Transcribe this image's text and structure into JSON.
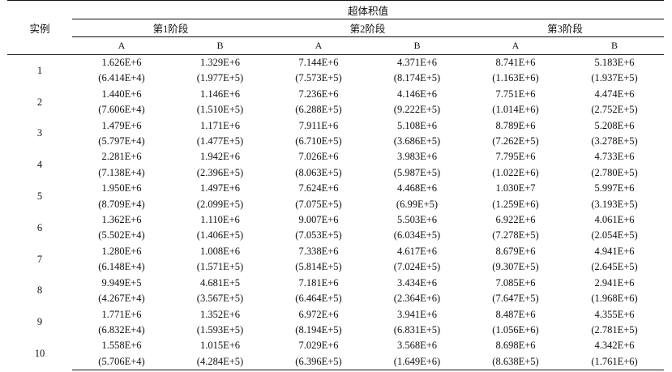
{
  "header": {
    "instance_label": "实例",
    "group_label": "超体积值",
    "stages": [
      "第1阶段",
      "第2阶段",
      "第3阶段"
    ],
    "sub_columns": [
      "A",
      "B"
    ]
  },
  "rows": [
    {
      "id": "1",
      "mean": [
        [
          "1.626E+6",
          true
        ],
        [
          "1.329E+6",
          false
        ],
        [
          "7.144E+6",
          true
        ],
        [
          "4.371E+6",
          false
        ],
        [
          "8.741E+6",
          true
        ],
        [
          "5.183E+6",
          false
        ]
      ],
      "std": [
        [
          "(6.414E+4)",
          true
        ],
        [
          "(1.977E+5)",
          false
        ],
        [
          "(7.573E+5)",
          true
        ],
        [
          "(8.174E+5)",
          false
        ],
        [
          "(1.163E+6)",
          false
        ],
        [
          "(1.937E+5)",
          true
        ]
      ]
    },
    {
      "id": "2",
      "mean": [
        [
          "1.440E+6",
          true
        ],
        [
          "1.146E+6",
          false
        ],
        [
          "7.236E+6",
          true
        ],
        [
          "4.146E+6",
          false
        ],
        [
          "7.751E+6",
          true
        ],
        [
          "4.474E+6",
          false
        ]
      ],
      "std": [
        [
          "(7.606E+4)",
          true
        ],
        [
          "(1.510E+5)",
          false
        ],
        [
          "(6.288E+5)",
          true
        ],
        [
          "(9.222E+5)",
          false
        ],
        [
          "(1.014E+6)",
          false
        ],
        [
          "(2.752E+5)",
          true
        ]
      ]
    },
    {
      "id": "3",
      "mean": [
        [
          "1.479E+6",
          true
        ],
        [
          "1.171E+6",
          false
        ],
        [
          "7.911E+6",
          true
        ],
        [
          "5.108E+6",
          false
        ],
        [
          "8.789E+6",
          true
        ],
        [
          "5.208E+6",
          false
        ]
      ],
      "std": [
        [
          "(5.797E+4)",
          true
        ],
        [
          "(1.477E+5)",
          false
        ],
        [
          "(6.710E+5)",
          false
        ],
        [
          "(3.686E+5)",
          true
        ],
        [
          "(7.262E+5)",
          false
        ],
        [
          "(3.278E+5)",
          true
        ]
      ]
    },
    {
      "id": "4",
      "mean": [
        [
          "2.281E+6",
          true
        ],
        [
          "1.942E+6",
          false
        ],
        [
          "7.026E+6",
          true
        ],
        [
          "3.983E+6",
          false
        ],
        [
          "7.795E+6",
          true
        ],
        [
          "4.733E+6",
          false
        ]
      ],
      "std": [
        [
          "(7.138E+4)",
          true
        ],
        [
          "(2.396E+5)",
          false
        ],
        [
          "(8.063E+5)",
          false
        ],
        [
          "(5.987E+5)",
          true
        ],
        [
          "(1.022E+6)",
          false
        ],
        [
          "(2.780E+5)",
          true
        ]
      ]
    },
    {
      "id": "5",
      "mean": [
        [
          "1.950E+6",
          true
        ],
        [
          "1.497E+6",
          false
        ],
        [
          "7.624E+6",
          true
        ],
        [
          "4.468E+6",
          false
        ],
        [
          "1.030E+7",
          true
        ],
        [
          "5.997E+6",
          false
        ]
      ],
      "std": [
        [
          "(8.709E+4)",
          true
        ],
        [
          "(2.099E+5)",
          false
        ],
        [
          "(7.075E+5)",
          false
        ],
        [
          "(6.99E+5)",
          true
        ],
        [
          "(1.259E+6)",
          false
        ],
        [
          "(3.193E+5)",
          true
        ]
      ]
    },
    {
      "id": "6",
      "mean": [
        [
          "1.362E+6",
          true
        ],
        [
          "1.110E+6",
          false
        ],
        [
          "9.007E+6",
          true
        ],
        [
          "5.503E+6",
          false
        ],
        [
          "6.922E+6",
          true
        ],
        [
          "4.061E+6",
          false
        ]
      ],
      "std": [
        [
          "(5.502E+4)",
          true
        ],
        [
          "(1.406E+5)",
          false
        ],
        [
          "(7.053E+5)",
          false
        ],
        [
          "(6.034E+5)",
          true
        ],
        [
          "(7.278E+5)",
          false
        ],
        [
          "(2.054E+5)",
          true
        ]
      ]
    },
    {
      "id": "7",
      "mean": [
        [
          "1.280E+6",
          true
        ],
        [
          "1.008E+6",
          false
        ],
        [
          "7.338E+6",
          true
        ],
        [
          "4.617E+6",
          false
        ],
        [
          "8.679E+6",
          true
        ],
        [
          "4.941E+6",
          false
        ]
      ],
      "std": [
        [
          "(6.148E+4)",
          true
        ],
        [
          "(1.571E+5)",
          false
        ],
        [
          "(5.814E+5)",
          true
        ],
        [
          "(7.024E+5)",
          false
        ],
        [
          "(9.307E+5)",
          false
        ],
        [
          "(2.645E+5)",
          true
        ]
      ]
    },
    {
      "id": "8",
      "mean": [
        [
          "9.949E+5",
          true
        ],
        [
          "4.681E+5",
          false
        ],
        [
          "7.181E+6",
          true
        ],
        [
          "3.434E+6",
          false
        ],
        [
          "7.085E+6",
          true
        ],
        [
          "2.941E+6",
          false
        ]
      ],
      "std": [
        [
          "(4.267E+4)",
          true
        ],
        [
          "(3.567E+5)",
          false
        ],
        [
          "(6.464E+5)",
          true
        ],
        [
          "(2.364E+6)",
          false
        ],
        [
          "(7.647E+5)",
          true
        ],
        [
          "(1.968E+6)",
          false
        ]
      ]
    },
    {
      "id": "9",
      "mean": [
        [
          "1.771E+6",
          true
        ],
        [
          "1.352E+6",
          false
        ],
        [
          "6.972E+6",
          true
        ],
        [
          "3.941E+6",
          false
        ],
        [
          "8.487E+6",
          true
        ],
        [
          "4.355E+6",
          false
        ]
      ],
      "std": [
        [
          "(6.832E+4)",
          true
        ],
        [
          "(1.593E+5)",
          false
        ],
        [
          "(8.194E+5)",
          false
        ],
        [
          "(6.831E+5)",
          true
        ],
        [
          "(1.056E+6)",
          false
        ],
        [
          "(2.781E+5)",
          true
        ]
      ]
    },
    {
      "id": "10",
      "mean": [
        [
          "1.558E+6",
          true
        ],
        [
          "1.015E+6",
          false
        ],
        [
          "7.029E+6",
          true
        ],
        [
          "3.568E+6",
          false
        ],
        [
          "8.698E+6",
          true
        ],
        [
          "4.342E+6",
          false
        ]
      ],
      "std": [
        [
          "(5.706E+4)",
          true
        ],
        [
          "(4.284E+5)",
          false
        ],
        [
          "(6.396E+5)",
          true
        ],
        [
          "(1.649E+6)",
          false
        ],
        [
          "(8.638E+5)",
          true
        ],
        [
          "(1.761E+6)",
          false
        ]
      ]
    }
  ]
}
